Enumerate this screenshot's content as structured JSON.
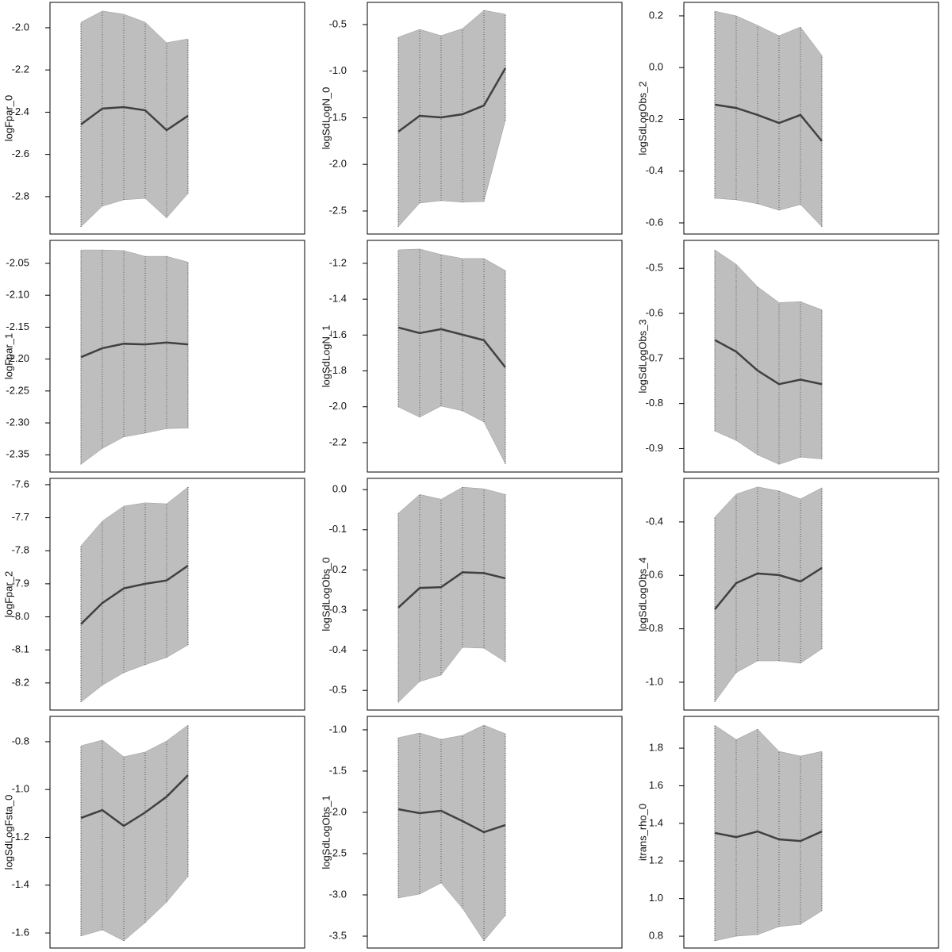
{
  "chart_data": [
    {
      "type": "line",
      "y_label": "logFpar_0",
      "categories": [
        null,
        null,
        null,
        null,
        null,
        null
      ],
      "values": [
        -2.458,
        -2.383,
        -2.376,
        -2.391,
        -2.485,
        -2.417
      ],
      "lower": [
        -2.943,
        -2.845,
        -2.815,
        -2.808,
        -2.901,
        -2.785
      ],
      "upper": [
        -1.974,
        -1.921,
        -1.936,
        -1.974,
        -2.071,
        -2.053
      ],
      "ylim": [
        -2.977,
        -1.88
      ],
      "yticks": [
        {
          "value": -2,
          "label": "-2.0"
        },
        -2.2,
        -2.4,
        -2.6,
        -2.8
      ],
      "color": "#404040",
      "band_color": "#bebebe"
    },
    {
      "type": "line",
      "y_label": "logSdLogN_0",
      "categories": [
        null,
        null,
        null,
        null,
        null,
        null
      ],
      "values": [
        -1.649,
        -1.479,
        -1.496,
        -1.462,
        -1.368,
        -0.968
      ],
      "lower": [
        -2.67,
        -2.415,
        -2.389,
        -2.406,
        -2.398,
        -1.53
      ],
      "upper": [
        -0.636,
        -0.551,
        -0.619,
        -0.543,
        -0.347,
        -0.389
      ],
      "ylim": [
        -2.747,
        -0.262
      ],
      "yticks": [
        -0.5,
        {
          "value": -1,
          "label": "-1.0"
        },
        -1.5,
        {
          "value": -2,
          "label": "-2.0"
        },
        -2.5
      ],
      "color": "#404040",
      "band_color": "#bebebe"
    },
    {
      "type": "line",
      "y_label": "logSdLogObs_2",
      "categories": [
        null,
        null,
        null,
        null,
        null,
        null
      ],
      "values": [
        -0.143,
        -0.156,
        -0.183,
        -0.214,
        -0.183,
        -0.284
      ],
      "lower": [
        -0.505,
        -0.511,
        -0.526,
        -0.551,
        -0.529,
        -0.615
      ],
      "upper": [
        0.218,
        0.2,
        0.163,
        0.123,
        0.157,
        0.047
      ],
      "ylim": [
        -0.643,
        0.252
      ],
      "yticks": [
        0.2,
        {
          "value": 0,
          "label": "0.0"
        },
        -0.2,
        -0.4,
        -0.6
      ],
      "color": "#404040",
      "band_color": "#bebebe"
    },
    {
      "type": "line",
      "y_label": "logFpar_1",
      "categories": [
        null,
        null,
        null,
        null,
        null,
        null
      ],
      "values": [
        -2.197,
        -2.183,
        -2.176,
        -2.177,
        -2.174,
        -2.177
      ],
      "lower": [
        -2.365,
        -2.34,
        -2.322,
        -2.316,
        -2.309,
        -2.308
      ],
      "upper": [
        -2.029,
        -2.029,
        -2.03,
        -2.039,
        -2.039,
        -2.048
      ],
      "ylim": [
        -2.377,
        -2.014
      ],
      "yticks": [
        -2.05,
        {
          "value": -2.1,
          "label": "-2.10"
        },
        -2.15,
        {
          "value": -2.2,
          "label": "-2.20"
        },
        -2.25,
        {
          "value": -2.3,
          "label": "-2.30"
        },
        -2.35
      ],
      "color": "#404040",
      "band_color": "#bebebe"
    },
    {
      "type": "line",
      "y_label": "logSdLogN_1",
      "categories": [
        null,
        null,
        null,
        null,
        null,
        null
      ],
      "values": [
        -1.558,
        -1.589,
        -1.567,
        -1.598,
        -1.629,
        -1.78
      ],
      "lower": [
        -2.001,
        -2.058,
        -1.996,
        -2.023,
        -2.085,
        -2.319
      ],
      "upper": [
        -1.125,
        -1.12,
        -1.151,
        -1.173,
        -1.173,
        -1.24
      ],
      "ylim": [
        -2.364,
        -1.072
      ],
      "yticks": [
        -1.2,
        -1.4,
        -1.6,
        -1.8,
        {
          "value": -2,
          "label": "-2.0"
        },
        -2.2
      ],
      "color": "#404040",
      "band_color": "#bebebe"
    },
    {
      "type": "line",
      "y_label": "logSdLogObs_3",
      "categories": [
        null,
        null,
        null,
        null,
        null,
        null
      ],
      "values": [
        -0.659,
        -0.685,
        -0.727,
        -0.757,
        -0.747,
        -0.757
      ],
      "lower": [
        -0.861,
        -0.882,
        -0.914,
        -0.935,
        -0.919,
        -0.923
      ],
      "upper": [
        -0.459,
        -0.491,
        -0.541,
        -0.576,
        -0.574,
        -0.592
      ],
      "ylim": [
        -0.952,
        -0.438
      ],
      "yticks": [
        -0.5,
        -0.6,
        -0.7,
        -0.8,
        -0.9
      ],
      "color": "#404040",
      "band_color": "#bebebe"
    },
    {
      "type": "line",
      "y_label": "logFpar_2",
      "categories": [
        null,
        null,
        null,
        null,
        null,
        null
      ],
      "values": [
        -8.022,
        -7.958,
        -7.914,
        -7.9,
        -7.89,
        -7.845
      ],
      "lower": [
        -8.258,
        -8.207,
        -8.169,
        -8.145,
        -8.123,
        -8.085
      ],
      "upper": [
        -7.785,
        -7.71,
        -7.665,
        -7.655,
        -7.658,
        -7.607
      ],
      "ylim": [
        -8.282,
        -7.581
      ],
      "yticks": [
        -7.6,
        -7.7,
        -7.8,
        -7.9,
        {
          "value": -8,
          "label": "-8.0"
        },
        -8.1,
        -8.2
      ],
      "color": "#404040",
      "band_color": "#bebebe"
    },
    {
      "type": "line",
      "y_label": "logSdLogObs_0",
      "categories": [
        null,
        null,
        null,
        null,
        null,
        null
      ],
      "values": [
        -0.294,
        -0.245,
        -0.243,
        -0.206,
        -0.208,
        -0.221
      ],
      "lower": [
        -0.53,
        -0.478,
        -0.462,
        -0.393,
        -0.395,
        -0.429
      ],
      "upper": [
        -0.059,
        -0.012,
        -0.024,
        0.006,
        0.002,
        -0.012
      ],
      "ylim": [
        -0.549,
        0.028
      ],
      "yticks": [
        {
          "value": 0,
          "label": "0.0"
        },
        -0.1,
        -0.2,
        -0.3,
        -0.4,
        -0.5
      ],
      "color": "#404040",
      "band_color": "#bebebe"
    },
    {
      "type": "line",
      "y_label": "logSdLogObs_4",
      "categories": [
        null,
        null,
        null,
        null,
        null,
        null
      ],
      "values": [
        -0.727,
        -0.629,
        -0.593,
        -0.599,
        -0.623,
        -0.572
      ],
      "lower": [
        -1.074,
        -0.964,
        -0.92,
        -0.92,
        -0.929,
        -0.875
      ],
      "upper": [
        -0.382,
        -0.296,
        -0.269,
        -0.284,
        -0.314,
        -0.272
      ],
      "ylim": [
        -1.104,
        -0.237
      ],
      "yticks": [
        -0.4,
        -0.6,
        -0.8,
        {
          "value": -1,
          "label": "-1.0"
        }
      ],
      "color": "#404040",
      "band_color": "#bebebe"
    },
    {
      "type": "line",
      "y_label": "logSdLogFsta_0",
      "categories": [
        null,
        null,
        null,
        null,
        null,
        null
      ],
      "values": [
        -1.119,
        -1.086,
        -1.152,
        -1.096,
        -1.03,
        -0.94
      ],
      "lower": [
        -1.613,
        -1.587,
        -1.633,
        -1.557,
        -1.471,
        -1.364
      ],
      "upper": [
        -0.817,
        -0.793,
        -0.863,
        -0.843,
        -0.797,
        -0.73
      ],
      "ylim": [
        -1.663,
        -0.694
      ],
      "yticks": [
        -0.8,
        {
          "value": -1,
          "label": "-1.0"
        },
        -1.2,
        -1.4,
        -1.6
      ],
      "color": "#404040",
      "band_color": "#bebebe"
    },
    {
      "type": "line",
      "y_label": "logSdLogObs_1",
      "categories": [
        null,
        null,
        null,
        null,
        null,
        null
      ],
      "values": [
        -1.962,
        -2.01,
        -1.981,
        -2.106,
        -2.24,
        -2.154
      ],
      "lower": [
        -3.038,
        -2.99,
        -2.856,
        -3.163,
        -3.558,
        -3.25
      ],
      "upper": [
        -1.096,
        -1.038,
        -1.115,
        -1.067,
        -0.942,
        -1.048
      ],
      "ylim": [
        -3.644,
        -0.837
      ],
      "yticks": [
        {
          "value": -1,
          "label": "-1.0"
        },
        -1.5,
        {
          "value": -2,
          "label": "-2.0"
        },
        -2.5,
        {
          "value": -3,
          "label": "-3.0"
        },
        -3.5
      ],
      "color": "#404040",
      "band_color": "#bebebe"
    },
    {
      "type": "line",
      "y_label": "itrans_rho_0",
      "categories": [
        null,
        null,
        null,
        null,
        null,
        null
      ],
      "values": [
        1.349,
        1.327,
        1.357,
        1.315,
        1.306,
        1.357
      ],
      "lower": [
        0.775,
        0.8,
        0.808,
        0.851,
        0.863,
        0.935
      ],
      "upper": [
        1.922,
        1.846,
        1.901,
        1.783,
        1.758,
        1.783
      ],
      "ylim": [
        0.737,
        1.969
      ],
      "yticks": [
        1.8,
        1.6,
        1.4,
        1.2,
        {
          "value": 1,
          "label": "1.0"
        },
        0.8
      ],
      "color": "#404040",
      "band_color": "#bebebe"
    }
  ]
}
